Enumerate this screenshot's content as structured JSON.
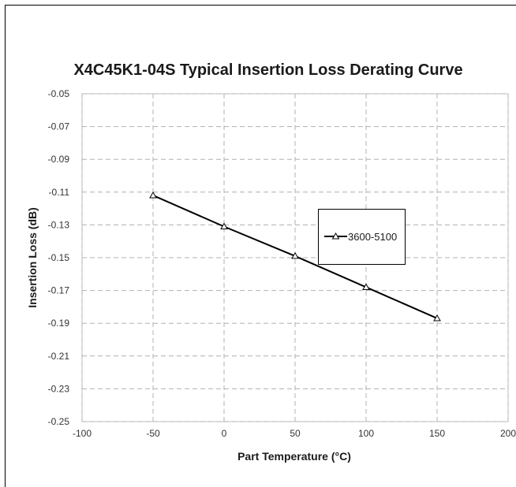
{
  "chart_data": {
    "type": "line",
    "title": "X4C45K1-04S Typical Insertion Loss Derating Curve",
    "xlabel": "Part Temperature (°C)",
    "ylabel": "Insertion Loss (dB)",
    "xlim": [
      -100,
      200
    ],
    "ylim": [
      -0.25,
      -0.05
    ],
    "x_ticks": [
      -100,
      -50,
      0,
      50,
      100,
      150,
      200
    ],
    "y_ticks": [
      -0.05,
      -0.07,
      -0.09,
      -0.11,
      -0.13,
      -0.15,
      -0.17,
      -0.19,
      -0.21,
      -0.23,
      -0.25
    ],
    "x_tick_labels": [
      "-100",
      "-50",
      "0",
      "50",
      "100",
      "150",
      "200"
    ],
    "y_tick_labels": [
      "-0.05",
      "-0.07",
      "-0.09",
      "-0.11",
      "-0.13",
      "-0.15",
      "-0.17",
      "-0.19",
      "-0.21",
      "-0.23",
      "-0.25"
    ],
    "grid": true,
    "legend_position": "center-right",
    "series": [
      {
        "name": "3600-5100",
        "marker": "triangle",
        "color": "#000000",
        "x": [
          -50,
          0,
          50,
          100,
          150
        ],
        "y": [
          -0.112,
          -0.131,
          -0.149,
          -0.168,
          -0.187
        ]
      }
    ]
  }
}
